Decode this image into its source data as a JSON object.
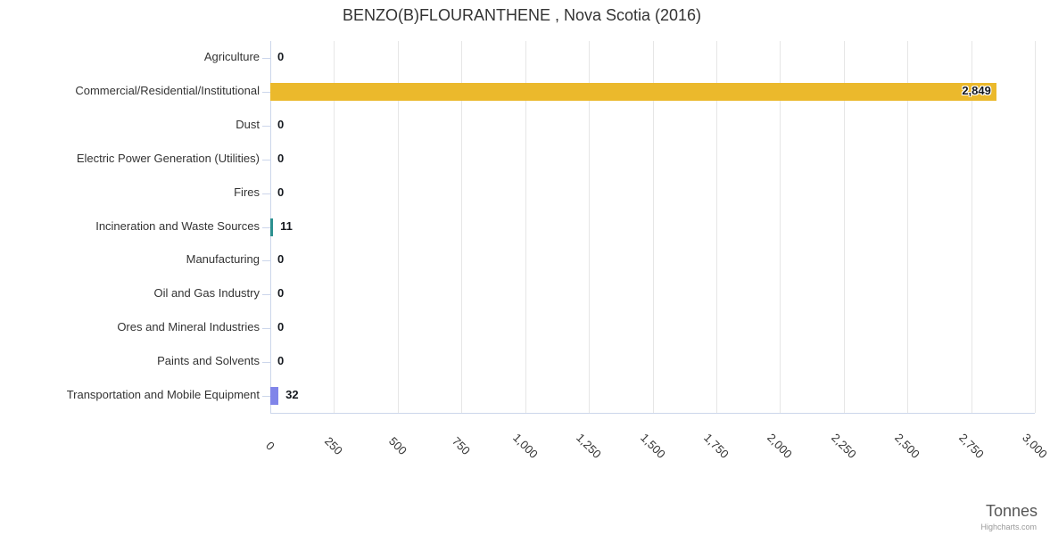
{
  "chart_data": {
    "type": "bar",
    "orientation": "horizontal",
    "title": "BENZO(B)FLOURANTHENE , Nova Scotia (2016)",
    "categories": [
      "Agriculture",
      "Commercial/Residential/Institutional",
      "Dust",
      "Electric Power Generation (Utilities)",
      "Fires",
      "Incineration and Waste Sources",
      "Manufacturing",
      "Oil and Gas Industry",
      "Ores and Mineral Industries",
      "Paints and Solvents",
      "Transportation and Mobile Equipment"
    ],
    "values": [
      0,
      2849,
      0,
      0,
      0,
      11,
      0,
      0,
      0,
      0,
      32
    ],
    "value_labels": [
      "0",
      "2,849",
      "0",
      "0",
      "0",
      "11",
      "0",
      "0",
      "0",
      "0",
      "32"
    ],
    "bar_colors": [
      null,
      "#EBB92C",
      null,
      null,
      null,
      "#2B908F",
      null,
      null,
      null,
      null,
      "#8085E9"
    ],
    "xlabel": "Tonnes",
    "ylabel": "",
    "xlim": [
      0,
      3000
    ],
    "tick_interval": 250,
    "tick_labels": [
      "0",
      "250",
      "500",
      "750",
      "1,000",
      "1,250",
      "1,500",
      "1,750",
      "2,000",
      "2,250",
      "2,500",
      "2,750",
      "3,000"
    ],
    "grid": true,
    "legend": false,
    "credits": "Highcharts.com",
    "colors": {
      "grid": "#e6e6e6",
      "axis_line": "#ccd6eb",
      "category_text": "#333333",
      "tick_text": "#333333",
      "data_label": "#15191f",
      "axis_title_text": "#555555",
      "credits_text": "#999999",
      "default_bar": "#7cb5ec",
      "background": "#ffffff"
    }
  }
}
